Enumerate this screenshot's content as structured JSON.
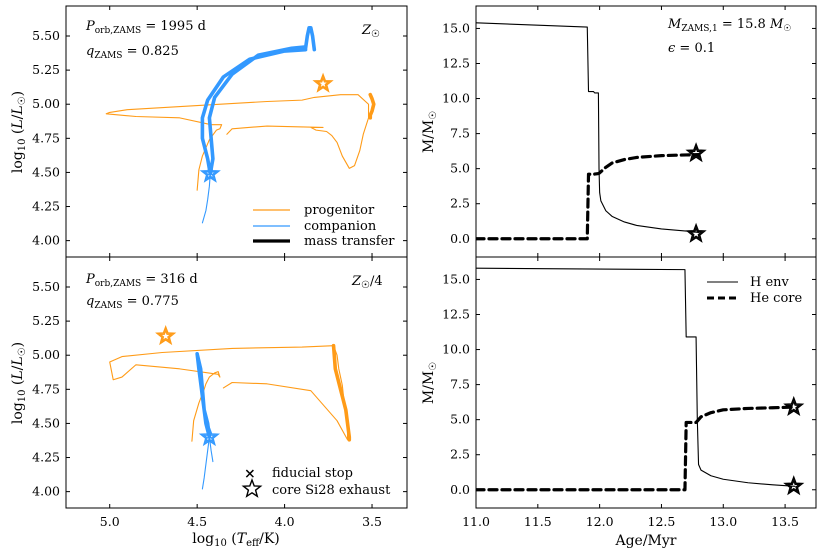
{
  "chart_data": [
    {
      "type": "line",
      "panel": "top-left",
      "title": "",
      "xlabel": "",
      "ylabel": "log10 (L/L☉)",
      "xlim": [
        5.25,
        3.3
      ],
      "ylim": [
        3.88,
        5.72
      ],
      "xticks": [
        5.0,
        4.5,
        4.0,
        3.5
      ],
      "xticklabels": [
        "",
        "",
        "",
        ""
      ],
      "yticks": [
        4.0,
        4.25,
        4.5,
        4.75,
        5.0,
        5.25,
        5.5
      ],
      "yticklabels": [
        "4.00",
        "4.25",
        "4.50",
        "4.75",
        "5.00",
        "5.25",
        "5.50"
      ],
      "annotations": {
        "period": "P_orb,ZAMS = 1995 d",
        "q": "q_ZAMS = 0.825",
        "metallicity": "Z☉"
      },
      "legend": {
        "position": "lower-right",
        "entries": [
          "progenitor",
          "companion",
          "mass transfer"
        ]
      },
      "colors": {
        "progenitor": "#ff9b17",
        "companion": "#3399ff",
        "thick": "#000000"
      },
      "series": [
        {
          "name": "progenitor",
          "x": [
            4.5,
            4.49,
            4.47,
            4.43,
            4.39,
            4.37,
            4.36,
            4.42,
            4.6,
            4.85,
            5.02,
            5.0,
            4.9,
            4.5,
            4.1,
            3.9,
            3.83,
            3.68,
            3.58,
            3.52,
            3.52,
            3.55,
            3.57,
            3.6,
            3.63,
            3.67,
            3.7,
            3.73,
            3.76,
            3.82,
            3.85,
            3.78,
            4.1,
            4.3,
            4.33
          ],
          "y": [
            4.37,
            4.52,
            4.62,
            4.74,
            4.81,
            4.82,
            4.85,
            4.85,
            4.9,
            4.91,
            4.93,
            4.94,
            4.96,
            4.99,
            5.02,
            5.03,
            5.05,
            5.07,
            5.07,
            5.0,
            4.9,
            4.78,
            4.66,
            4.55,
            4.53,
            4.62,
            4.72,
            4.77,
            4.8,
            4.81,
            4.83,
            4.83,
            4.84,
            4.82,
            4.78
          ]
        },
        {
          "name": "progenitor-mt",
          "x": [
            3.51,
            3.5,
            3.49,
            3.5,
            3.51,
            3.51
          ],
          "y": [
            5.07,
            5.04,
            5.0,
            4.95,
            4.92,
            4.9
          ]
        },
        {
          "name": "companion",
          "x": [
            4.47,
            4.45,
            4.44,
            4.43,
            4.425
          ],
          "y": [
            4.13,
            4.22,
            4.3,
            4.4,
            4.49
          ]
        },
        {
          "name": "companion-mt-1",
          "x": [
            4.425,
            4.44,
            4.47,
            4.47,
            4.44,
            4.35,
            4.2,
            4.0,
            3.88
          ],
          "y": [
            4.49,
            4.6,
            4.75,
            4.9,
            5.03,
            5.2,
            5.33,
            5.39,
            5.4
          ]
        },
        {
          "name": "companion-mt-2",
          "x": [
            4.425,
            4.41,
            4.42,
            4.43,
            4.4,
            4.3,
            4.15,
            3.96,
            3.88
          ],
          "y": [
            4.49,
            4.6,
            4.75,
            4.9,
            5.05,
            5.22,
            5.36,
            5.41,
            5.42
          ]
        },
        {
          "name": "companion-mt-3",
          "x": [
            3.88,
            3.87,
            3.86,
            3.85,
            3.84,
            3.83
          ],
          "y": [
            5.41,
            5.5,
            5.56,
            5.56,
            5.5,
            5.4
          ]
        }
      ],
      "stars": [
        {
          "x": 3.78,
          "y": 5.15,
          "color": "#ff9b17"
        },
        {
          "x": 4.425,
          "y": 4.49,
          "color": "#3399ff"
        }
      ]
    },
    {
      "type": "line",
      "panel": "bottom-left",
      "title": "",
      "xlabel": "log10 (Teff/K)",
      "ylabel": "log10 (L/L☉)",
      "xlim": [
        5.25,
        3.3
      ],
      "ylim": [
        3.88,
        5.72
      ],
      "xticks": [
        5.0,
        4.5,
        4.0,
        3.5
      ],
      "xticklabels": [
        "5.0",
        "4.5",
        "4.0",
        "3.5"
      ],
      "yticks": [
        4.0,
        4.25,
        4.5,
        4.75,
        5.0,
        5.25,
        5.5
      ],
      "yticklabels": [
        "4.00",
        "4.25",
        "4.50",
        "4.75",
        "5.00",
        "5.25",
        "5.50"
      ],
      "annotations": {
        "period": "P_orb,ZAMS = 316 d",
        "q": "q_ZAMS = 0.775",
        "metallicity": "Z☉/4"
      },
      "legend": {
        "position": "lower-right",
        "entries": [
          "fiducial stop",
          "core Si28 exhaust"
        ]
      },
      "colors": {
        "progenitor": "#ff9b17",
        "companion": "#3399ff",
        "thick": "#000000"
      },
      "series": [
        {
          "name": "progenitor",
          "x": [
            4.53,
            4.52,
            4.49,
            4.46,
            4.45,
            4.43,
            4.4,
            4.38,
            4.37,
            4.38,
            4.6,
            4.85,
            4.93,
            4.98,
            5.0,
            4.93,
            4.7,
            4.3,
            3.9,
            3.72,
            3.7,
            3.69,
            3.67,
            3.66,
            3.64,
            3.64,
            3.7,
            3.85,
            4.1,
            4.3,
            4.35
          ],
          "y": [
            4.37,
            4.52,
            4.65,
            4.75,
            4.79,
            4.84,
            4.87,
            4.88,
            4.84,
            4.86,
            4.9,
            4.93,
            4.84,
            4.82,
            4.95,
            4.99,
            5.02,
            5.05,
            5.06,
            5.07,
            5.0,
            4.9,
            4.78,
            4.66,
            4.55,
            4.38,
            4.52,
            4.74,
            4.79,
            4.8,
            4.76
          ]
        },
        {
          "name": "progenitor-mt",
          "x": [
            3.72,
            3.71,
            3.69,
            3.67,
            3.65,
            3.64,
            3.63,
            3.63
          ],
          "y": [
            5.07,
            4.9,
            4.8,
            4.7,
            4.6,
            4.5,
            4.4,
            4.38
          ]
        },
        {
          "name": "companion",
          "x": [
            4.47,
            4.46,
            4.45,
            4.44,
            4.43
          ],
          "y": [
            4.02,
            4.1,
            4.2,
            4.3,
            4.4
          ]
        },
        {
          "name": "companion-mt",
          "x": [
            4.43,
            4.44,
            4.46,
            4.47,
            4.48,
            4.49,
            4.5,
            4.48,
            4.47,
            4.46,
            4.45,
            4.44,
            4.43
          ],
          "y": [
            4.4,
            4.5,
            4.6,
            4.7,
            4.8,
            4.9,
            5.01,
            4.9,
            4.75,
            4.6,
            4.5,
            4.45,
            4.4
          ]
        },
        {
          "name": "companion-tail",
          "x": [
            4.43,
            4.42,
            4.41
          ],
          "y": [
            4.4,
            4.3,
            4.22
          ]
        }
      ],
      "stars": [
        {
          "x": 4.68,
          "y": 5.14,
          "color": "#ff9b17"
        },
        {
          "x": 4.43,
          "y": 4.4,
          "color": "#3399ff"
        }
      ]
    },
    {
      "type": "line",
      "panel": "top-right",
      "title": "",
      "xlabel": "",
      "ylabel": "M/M☉",
      "xlim": [
        11.0,
        13.75
      ],
      "ylim": [
        -1.3,
        16.6
      ],
      "xticks": [
        11.0,
        11.5,
        12.0,
        12.5,
        13.0,
        13.5
      ],
      "xticklabels": [
        "",
        "",
        "",
        "",
        "",
        ""
      ],
      "yticks": [
        0.0,
        2.5,
        5.0,
        7.5,
        10.0,
        12.5,
        15.0
      ],
      "yticklabels": [
        "0.0",
        "2.5",
        "5.0",
        "7.5",
        "10.0",
        "12.5",
        "15.0"
      ],
      "annotations": {
        "mass": "M_ZAMS,1 = 15.8 M☉",
        "epsilon": "ε = 0.1"
      },
      "series": [
        {
          "name": "H env",
          "style": "solid",
          "x": [
            11.0,
            11.9,
            11.91,
            11.95,
            11.96,
            11.99,
            11.995,
            12.0,
            12.01,
            12.05,
            12.1,
            12.2,
            12.3,
            12.5,
            12.7,
            12.8
          ],
          "y": [
            15.4,
            15.1,
            10.5,
            10.5,
            10.4,
            10.4,
            5.0,
            3.3,
            2.7,
            2.0,
            1.6,
            1.2,
            0.95,
            0.7,
            0.55,
            0.45
          ]
        },
        {
          "name": "He core",
          "style": "dashed",
          "x": [
            11.0,
            11.9,
            11.91,
            11.95,
            11.99,
            12.0,
            12.05,
            12.1,
            12.2,
            12.3,
            12.5,
            12.7,
            12.8
          ],
          "y": [
            0.0,
            0.0,
            4.6,
            4.6,
            4.65,
            4.7,
            5.1,
            5.4,
            5.65,
            5.8,
            5.93,
            5.98,
            6.0
          ]
        }
      ],
      "stars": [
        {
          "x": 12.78,
          "y": 6.1
        },
        {
          "x": 12.78,
          "y": 0.35
        }
      ]
    },
    {
      "type": "line",
      "panel": "bottom-right",
      "title": "",
      "xlabel": "Age/Myr",
      "ylabel": "M/M☉",
      "xlim": [
        11.0,
        13.75
      ],
      "ylim": [
        -1.3,
        16.6
      ],
      "xticks": [
        11.0,
        11.5,
        12.0,
        12.5,
        13.0,
        13.5
      ],
      "xticklabels": [
        "11.0",
        "11.5",
        "12.0",
        "12.5",
        "13.0",
        "13.5"
      ],
      "yticks": [
        0.0,
        2.5,
        5.0,
        7.5,
        10.0,
        12.5,
        15.0
      ],
      "yticklabels": [
        "0.0",
        "2.5",
        "5.0",
        "7.5",
        "10.0",
        "12.5",
        "15.0"
      ],
      "legend": {
        "position": "top-right",
        "entries": [
          "H env",
          "He core"
        ]
      },
      "series": [
        {
          "name": "H env",
          "style": "solid",
          "x": [
            11.0,
            12.69,
            12.7,
            12.72,
            12.74,
            12.78,
            12.79,
            12.8,
            12.82,
            12.9,
            13.0,
            13.2,
            13.4,
            13.58
          ],
          "y": [
            15.8,
            15.7,
            10.9,
            10.9,
            10.9,
            10.9,
            5.0,
            1.8,
            1.4,
            1.0,
            0.75,
            0.5,
            0.35,
            0.25
          ]
        },
        {
          "name": "He core",
          "style": "dashed",
          "x": [
            11.0,
            12.69,
            12.7,
            12.78,
            12.79,
            12.82,
            12.9,
            13.0,
            13.2,
            13.4,
            13.58
          ],
          "y": [
            0.0,
            0.0,
            4.8,
            4.8,
            4.9,
            5.2,
            5.5,
            5.7,
            5.8,
            5.85,
            5.9
          ]
        }
      ],
      "stars": [
        {
          "x": 13.57,
          "y": 5.9
        },
        {
          "x": 13.57,
          "y": 0.25
        }
      ]
    }
  ],
  "legend_labels": {
    "progenitor": "progenitor",
    "companion": "companion",
    "mass_transfer": "mass transfer",
    "fiducial_stop": "fiducial stop",
    "core_si28": "core Si28 exhaust",
    "h_env": "H env",
    "he_core": "He core"
  }
}
